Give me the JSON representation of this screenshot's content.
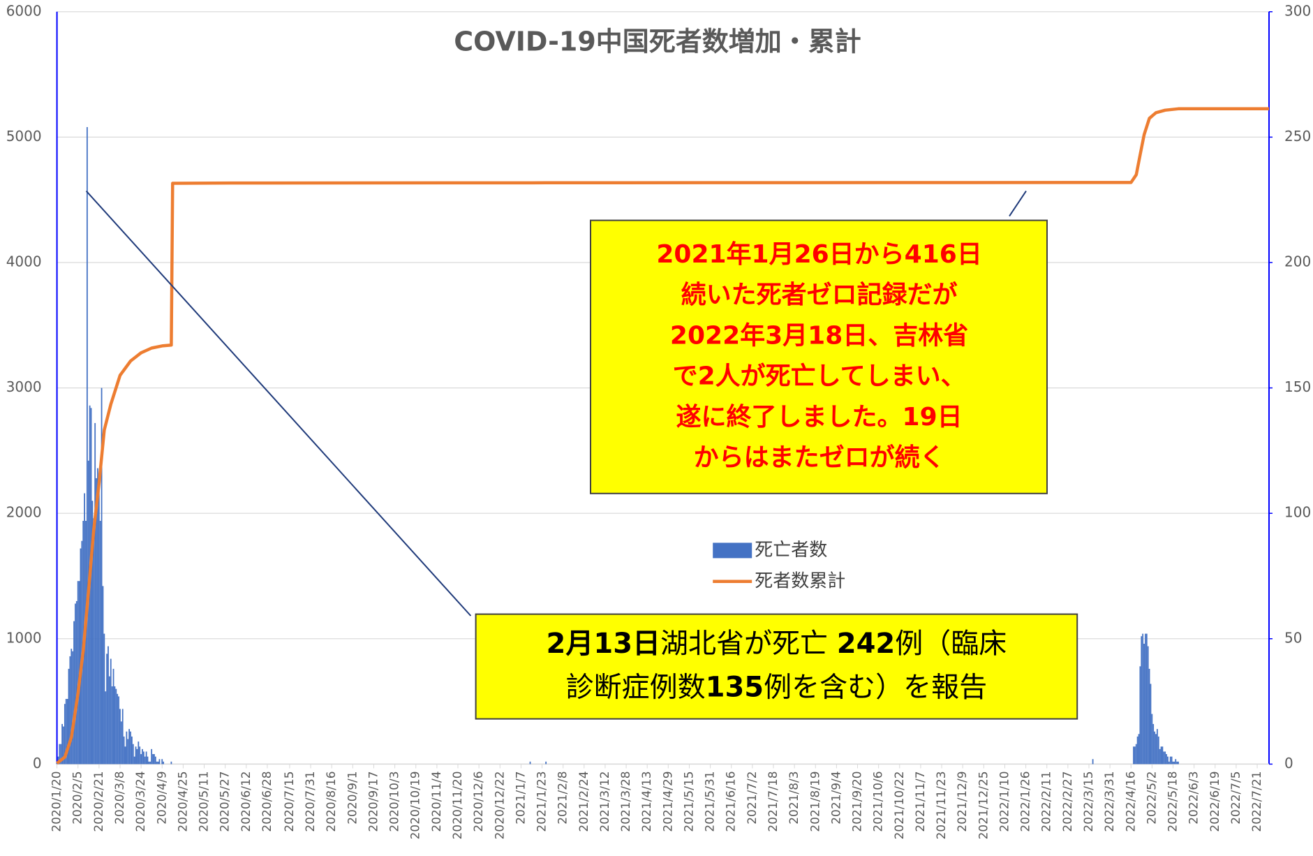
{
  "chart_data": {
    "type": "bar-line",
    "title": "COVID-19中国死者数増加・累計",
    "xlim": [
      "2020/1/20",
      "2022/7/30"
    ],
    "xticks": [
      "2020/1/20",
      "2020/2/5",
      "2020/2/21",
      "2020/3/8",
      "2020/3/24",
      "2020/4/9",
      "2020/4/25",
      "2020/5/11",
      "2020/5/27",
      "2020/6/12",
      "2020/6/28",
      "2020/7/15",
      "2020/7/31",
      "2020/8/16",
      "2020/9/1",
      "2020/9/17",
      "2020/10/3",
      "2020/10/19",
      "2020/11/4",
      "2020/11/20",
      "2020/12/6",
      "2020/12/22",
      "2021/1/7",
      "2021/1/23",
      "2021/2/8",
      "2021/2/24",
      "2021/3/12",
      "2021/3/28",
      "2021/4/13",
      "2021/4/29",
      "2021/5/15",
      "2021/5/31",
      "2021/6/16",
      "2021/7/2",
      "2021/7/18",
      "2021/8/3",
      "2021/8/19",
      "2021/9/4",
      "2021/9/20",
      "2021/10/6",
      "2021/10/22",
      "2021/11/7",
      "2021/11/23",
      "2021/12/9",
      "2021/12/25",
      "2022/1/10",
      "2022/1/26",
      "2022/2/11",
      "2022/2/27",
      "2022/3/15",
      "2022/3/31",
      "2022/4/16",
      "2022/5/2",
      "2022/5/18",
      "2022/6/3",
      "2022/6/19",
      "2022/7/5",
      "2022/7/21"
    ],
    "ylim": [
      0,
      6000
    ],
    "yticks": [
      0,
      1000,
      2000,
      3000,
      4000,
      5000,
      6000
    ],
    "y2lim": [
      0,
      300
    ],
    "y2ticks": [
      0,
      50,
      100,
      150,
      200,
      250,
      300
    ],
    "grid": true,
    "series": [
      {
        "name": "死亡者数",
        "type": "bar",
        "axis": "y2",
        "color": "#4472c4",
        "x": [
          "2020/1/20",
          "2020/1/21",
          "2020/1/22",
          "2020/1/23",
          "2020/1/24",
          "2020/1/25",
          "2020/1/26",
          "2020/1/27",
          "2020/1/28",
          "2020/1/29",
          "2020/1/30",
          "2020/1/31",
          "2020/2/1",
          "2020/2/2",
          "2020/2/3",
          "2020/2/4",
          "2020/2/5",
          "2020/2/6",
          "2020/2/7",
          "2020/2/8",
          "2020/2/9",
          "2020/2/10",
          "2020/2/11",
          "2020/2/12",
          "2020/2/13",
          "2020/2/14",
          "2020/2/15",
          "2020/2/16",
          "2020/2/17",
          "2020/2/18",
          "2020/2/19",
          "2020/2/20",
          "2020/2/21",
          "2020/2/22",
          "2020/2/23",
          "2020/2/24",
          "2020/2/25",
          "2020/2/26",
          "2020/2/27",
          "2020/2/28",
          "2020/2/29",
          "2020/3/1",
          "2020/3/2",
          "2020/3/3",
          "2020/3/4",
          "2020/3/5",
          "2020/3/6",
          "2020/3/7",
          "2020/3/8",
          "2020/3/9",
          "2020/3/10",
          "2020/3/11",
          "2020/3/12",
          "2020/3/13",
          "2020/3/14",
          "2020/3/15",
          "2020/3/16",
          "2020/3/17",
          "2020/3/18",
          "2020/3/19",
          "2020/3/20",
          "2020/3/21",
          "2020/3/22",
          "2020/3/23",
          "2020/3/24",
          "2020/3/25",
          "2020/3/26",
          "2020/3/27",
          "2020/3/28",
          "2020/3/29",
          "2020/3/30",
          "2020/3/31",
          "2020/4/1",
          "2020/4/2",
          "2020/4/3",
          "2020/4/4",
          "2020/4/5",
          "2020/4/6",
          "2020/4/7",
          "2020/4/9",
          "2020/4/10",
          "2020/4/16",
          "2021/1/14",
          "2021/1/26",
          "2022/3/18",
          "2022/4/18",
          "2022/4/19",
          "2022/4/20",
          "2022/4/21",
          "2022/4/22",
          "2022/4/23",
          "2022/4/24",
          "2022/4/25",
          "2022/4/26",
          "2022/4/27",
          "2022/4/28",
          "2022/4/29",
          "2022/4/30",
          "2022/5/1",
          "2022/5/2",
          "2022/5/3",
          "2022/5/4",
          "2022/5/5",
          "2022/5/6",
          "2022/5/7",
          "2022/5/8",
          "2022/5/9",
          "2022/5/10",
          "2022/5/11",
          "2022/5/12",
          "2022/5/13",
          "2022/5/14",
          "2022/5/15",
          "2022/5/16",
          "2022/5/17",
          "2022/5/18",
          "2022/5/19",
          "2022/5/20",
          "2022/5/21",
          "2022/5/22"
        ],
        "values": [
          1,
          3,
          8,
          8,
          16,
          15,
          24,
          26,
          26,
          38,
          43,
          46,
          45,
          57,
          64,
          65,
          73,
          73,
          86,
          89,
          97,
          108,
          97,
          254,
          121,
          143,
          142,
          105,
          98,
          136,
          114,
          118,
          109,
          97,
          150,
          71,
          52,
          29,
          44,
          47,
          35,
          42,
          31,
          38,
          31,
          30,
          28,
          27,
          22,
          17,
          22,
          11,
          7,
          13,
          10,
          14,
          13,
          11,
          8,
          3,
          7,
          6,
          9,
          7,
          4,
          6,
          5,
          3,
          5,
          3,
          1,
          1,
          6,
          4,
          4,
          3,
          1,
          1,
          2,
          2,
          1,
          1,
          1,
          1,
          2,
          7,
          7,
          8,
          11,
          12,
          39,
          51,
          52,
          48,
          52,
          52,
          47,
          38,
          32,
          20,
          16,
          13,
          12,
          14,
          11,
          6,
          7,
          7,
          5,
          5,
          4,
          3,
          1,
          3,
          3,
          1,
          1,
          2,
          1,
          1
        ]
      },
      {
        "name": "死者数累計",
        "type": "line",
        "axis": "y",
        "color": "#ed7d31",
        "x": [
          "2020/1/20",
          "2020/1/26",
          "2020/1/31",
          "2020/2/5",
          "2020/2/9",
          "2020/2/13",
          "2020/2/17",
          "2020/2/21",
          "2020/2/25",
          "2020/3/1",
          "2020/3/8",
          "2020/3/16",
          "2020/3/24",
          "2020/4/1",
          "2020/4/9",
          "2020/4/16",
          "2020/4/17",
          "2020/6/1",
          "2021/1/26",
          "2022/3/18",
          "2022/4/16",
          "2022/4/20",
          "2022/4/23",
          "2022/4/26",
          "2022/4/30",
          "2022/5/5",
          "2022/5/12",
          "2022/5/22",
          "2022/7/30"
        ],
        "values": [
          6,
          56,
          213,
          564,
          908,
          1380,
          1868,
          2240,
          2665,
          2870,
          3100,
          3215,
          3280,
          3318,
          3335,
          3342,
          4632,
          4634,
          4636,
          4638,
          4638,
          4700,
          4860,
          5020,
          5150,
          5195,
          5215,
          5226,
          5226
        ]
      }
    ],
    "annotations": [
      {
        "color": "#ff0000",
        "lines": [
          [
            {
              "text": "2021年1月26日から416日",
              "bold": true
            }
          ],
          [
            {
              "text": "続いた死者ゼロ記録だが",
              "bold": true
            }
          ],
          [
            {
              "text": "2022年3月18日、吉林省",
              "bold": true
            }
          ],
          [
            {
              "text": "で2人が死亡してしまい、",
              "bold": true
            }
          ],
          [
            {
              "text": "遂に終了しました。19日",
              "bold": true
            }
          ],
          [
            {
              "text": "からはまたゼロが続く",
              "bold": true
            }
          ]
        ]
      },
      {
        "color": "#000000",
        "lines": [
          [
            {
              "text": "2月13日",
              "bold": true
            },
            {
              "text": "湖北省が死亡 ",
              "bold": false
            },
            {
              "text": "242",
              "bold": true
            },
            {
              "text": "例（臨床",
              "bold": false
            }
          ],
          [
            {
              "text": "診断症例数",
              "bold": false
            },
            {
              "text": "135",
              "bold": true
            },
            {
              "text": "例を含む）を報告",
              "bold": false
            }
          ]
        ]
      }
    ]
  }
}
